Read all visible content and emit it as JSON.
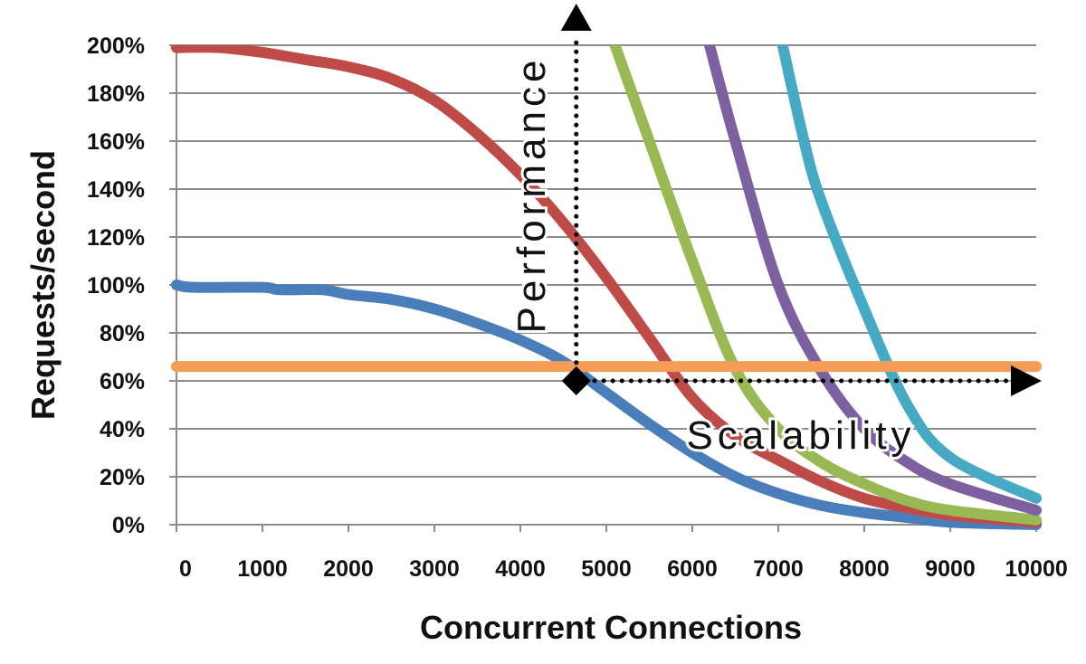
{
  "chart_data": {
    "type": "line",
    "xlabel": "Concurrent Connections",
    "ylabel": "Requests/second",
    "xlim": [
      0,
      10000
    ],
    "ylim": [
      0,
      200
    ],
    "x_ticks": [
      0,
      1000,
      2000,
      3000,
      4000,
      5000,
      6000,
      7000,
      8000,
      9000,
      10000
    ],
    "x_tick_labels": [
      "0",
      "1000",
      "2000",
      "3000",
      "4000",
      "5000",
      "6000",
      "7000",
      "8000",
      "9000",
      "10000"
    ],
    "y_ticks": [
      0,
      20,
      40,
      60,
      80,
      100,
      120,
      140,
      160,
      180,
      200
    ],
    "y_tick_labels": [
      "0%",
      "20%",
      "40%",
      "60%",
      "80%",
      "100%",
      "120%",
      "140%",
      "160%",
      "180%",
      "200%"
    ],
    "grid": true,
    "series": [
      {
        "color": "#4a7ebb",
        "x": [
          0,
          200,
          1000,
          1200,
          1700,
          2000,
          2500,
          3000,
          3500,
          4000,
          4500,
          5000,
          5500,
          6000,
          6500,
          7000,
          7500,
          8000,
          8500,
          9000,
          10000
        ],
        "y": [
          100,
          99,
          99,
          98,
          98,
          96,
          94,
          90,
          84,
          77,
          68,
          55,
          42,
          30,
          20,
          13,
          8,
          5,
          3,
          1,
          0
        ]
      },
      {
        "color": "#be4b48",
        "x": [
          0,
          500,
          1000,
          1500,
          2000,
          2500,
          3000,
          3500,
          4000,
          4500,
          5000,
          5500,
          6000,
          6500,
          7000,
          7500,
          8000,
          8500,
          9000,
          10000
        ],
        "y": [
          199,
          199,
          197,
          194,
          191,
          186,
          177,
          163,
          146,
          126,
          103,
          78,
          53,
          37,
          27,
          18,
          11,
          7,
          4,
          1
        ]
      },
      {
        "color": "#98b954",
        "x": [
          5100,
          5500,
          6000,
          6500,
          7000,
          7500,
          8000,
          8500,
          9000,
          10000
        ],
        "y": [
          200,
          160,
          110,
          65,
          40,
          26,
          17,
          10,
          6,
          2
        ]
      },
      {
        "color": "#7d60a0",
        "x": [
          6200,
          6500,
          7000,
          7500,
          8000,
          8500,
          9000,
          10000
        ],
        "y": [
          200,
          160,
          100,
          64,
          40,
          26,
          17,
          6
        ]
      },
      {
        "color": "#46aac5",
        "x": [
          7050,
          7300,
          7500,
          8000,
          8500,
          9000,
          10000
        ],
        "y": [
          200,
          160,
          135,
          90,
          50,
          28,
          11
        ]
      },
      {
        "color": "#f59d56",
        "x": [
          0,
          10000
        ],
        "y": [
          66,
          66
        ]
      }
    ],
    "annotations": {
      "vertical_label": "Performance",
      "horizontal_label": "Scalability",
      "marker_point": [
        4650,
        60
      ],
      "vertical_arrow_to": [
        4650,
        200
      ],
      "horizontal_arrow_to": [
        10000,
        60
      ]
    }
  }
}
